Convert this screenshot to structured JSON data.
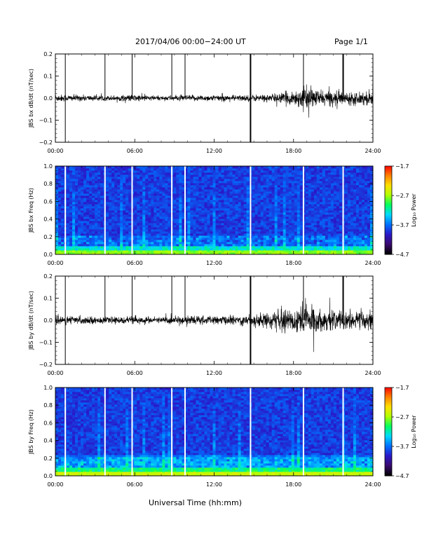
{
  "header": {
    "title": "2017/04/06  00:00−24:00 UT",
    "page": "Page 1/1"
  },
  "chart_data": [
    {
      "type": "line",
      "ylabel": "JBS bx dB/dt (nT/sec)",
      "xlabel": "",
      "xlim": [
        0,
        24
      ],
      "ylim": [
        -0.2,
        0.2
      ],
      "x_tick_labels": [
        "00:00",
        "06:00",
        "12:00",
        "18:00",
        "24:00"
      ],
      "y_tick_labels": [
        "0.2",
        "0.1",
        "0.0",
        "−0.1",
        "−0.2"
      ],
      "y_ticks": [
        0.2,
        0.1,
        0.0,
        -0.1,
        -0.2
      ],
      "gap_markers_hours": [
        0.75,
        3.75,
        5.8,
        8.8,
        9.8,
        14.75,
        18.75,
        21.75
      ],
      "envelope": {
        "x_hours": [
          0,
          2,
          4,
          6,
          8,
          10,
          12,
          14,
          16,
          17,
          18,
          19,
          20,
          21,
          22,
          23,
          24
        ],
        "amplitude": [
          0.015,
          0.012,
          0.01,
          0.014,
          0.009,
          0.012,
          0.012,
          0.012,
          0.015,
          0.02,
          0.03,
          0.045,
          0.03,
          0.03,
          0.025,
          0.025,
          0.03
        ]
      },
      "line_color": "#000000"
    },
    {
      "type": "heatmap",
      "ylabel": "JBS bx Freq (Hz)",
      "xlim": [
        0,
        24
      ],
      "ylim": [
        0.0,
        1.0
      ],
      "x_tick_labels": [
        "00:00",
        "06:00",
        "12:00",
        "18:00",
        "24:00"
      ],
      "y_tick_labels": [
        "1.0",
        "0.8",
        "0.6",
        "0.4",
        "0.2",
        "0.0"
      ],
      "y_ticks": [
        1.0,
        0.8,
        0.6,
        0.4,
        0.2,
        0.0
      ],
      "gap_markers_hours": [
        0.75,
        3.75,
        5.8,
        8.8,
        9.8,
        14.75,
        18.75,
        21.75
      ],
      "colorbar": {
        "label": "Log₁₀ Power",
        "tick_labels": [
          "−1.7",
          "−2.7",
          "−3.7",
          "−4.7"
        ],
        "ticks": [
          -1.7,
          -2.7,
          -3.7,
          -4.7
        ],
        "range": [
          -4.7,
          -1.7
        ],
        "colors": [
          "#000000",
          "#3a0a6e",
          "#2a18c8",
          "#0070ff",
          "#00d8ff",
          "#00ff60",
          "#b0ff00",
          "#ffe000",
          "#ff8000",
          "#ff0000"
        ]
      }
    },
    {
      "type": "line",
      "ylabel": "JBS by dB/dt (nT/sec)",
      "xlabel": "",
      "xlim": [
        0,
        24
      ],
      "ylim": [
        -0.2,
        0.2
      ],
      "x_tick_labels": [
        "00:00",
        "06:00",
        "12:00",
        "18:00",
        "24:00"
      ],
      "y_tick_labels": [
        "0.2",
        "0.1",
        "0.0",
        "−0.1",
        "−0.2"
      ],
      "y_ticks": [
        0.2,
        0.1,
        0.0,
        -0.1,
        -0.2
      ],
      "gap_markers_hours": [
        0.75,
        3.75,
        5.8,
        8.8,
        9.8,
        14.75,
        18.75,
        21.75
      ],
      "envelope": {
        "x_hours": [
          0,
          2,
          4,
          6,
          8,
          10,
          12,
          14,
          16,
          17,
          18,
          19,
          20,
          21,
          22,
          23,
          24
        ],
        "amplitude": [
          0.02,
          0.015,
          0.012,
          0.015,
          0.012,
          0.02,
          0.015,
          0.02,
          0.03,
          0.04,
          0.05,
          0.07,
          0.04,
          0.04,
          0.035,
          0.035,
          0.04
        ]
      },
      "line_color": "#000000"
    },
    {
      "type": "heatmap",
      "ylabel": "JBS by Freq (Hz)",
      "xlim": [
        0,
        24
      ],
      "ylim": [
        0.0,
        1.0
      ],
      "x_tick_labels": [
        "00:00",
        "06:00",
        "12:00",
        "18:00",
        "24:00"
      ],
      "y_tick_labels": [
        "1.0",
        "0.8",
        "0.6",
        "0.4",
        "0.2",
        "0.0"
      ],
      "y_ticks": [
        1.0,
        0.8,
        0.6,
        0.4,
        0.2,
        0.0
      ],
      "gap_markers_hours": [
        0.75,
        3.75,
        5.8,
        8.8,
        9.8,
        14.75,
        18.75,
        21.75
      ],
      "colorbar": {
        "label": "Log₁₀ Power",
        "tick_labels": [
          "−1.7",
          "−2.7",
          "−3.7",
          "−4.7"
        ],
        "ticks": [
          -1.7,
          -2.7,
          -3.7,
          -4.7
        ],
        "range": [
          -4.7,
          -1.7
        ],
        "colors": [
          "#000000",
          "#3a0a6e",
          "#2a18c8",
          "#0070ff",
          "#00d8ff",
          "#00ff60",
          "#b0ff00",
          "#ffe000",
          "#ff8000",
          "#ff0000"
        ]
      }
    }
  ],
  "footer": {
    "xlabel": "Universal Time (hh:mm)"
  }
}
